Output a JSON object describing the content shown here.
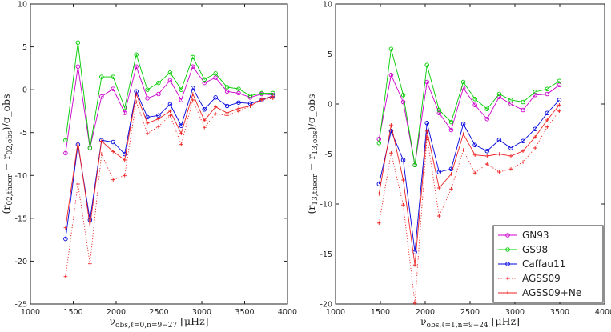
{
  "chart_data": [
    {
      "type": "line",
      "ylabel": "(r_{02,theor} − r_{02,obs})/σ_obs",
      "xlabel": "ν_{obs,ℓ=0,n=9−27} [μHz]",
      "xlim": [
        1000,
        4000
      ],
      "ylim": [
        -25,
        10
      ],
      "xticks": [
        1000,
        1500,
        2000,
        2500,
        3000,
        3500,
        4000
      ],
      "yticks": [
        -25,
        -20,
        -15,
        -10,
        -5,
        0,
        5,
        10
      ],
      "x": [
        1410,
        1555,
        1695,
        1830,
        1965,
        2100,
        2235,
        2365,
        2495,
        2630,
        2760,
        2895,
        3030,
        3160,
        3295,
        3430,
        3565,
        3700,
        3830
      ],
      "series": [
        {
          "name": "GN93",
          "color": "#cc00cc",
          "style": "solid",
          "marker": "circle",
          "values": [
            -7.4,
            2.7,
            -6.8,
            -0.8,
            0.1,
            -2.7,
            2.7,
            -1.0,
            -0.5,
            1.1,
            -1.2,
            2.7,
            0.8,
            1.4,
            -0.2,
            -0.4,
            -0.9,
            -0.5,
            -0.6
          ]
        },
        {
          "name": "GS98",
          "color": "#00cc00",
          "style": "solid",
          "marker": "circle",
          "values": [
            -5.9,
            5.5,
            -6.8,
            1.5,
            1.5,
            -2.1,
            4.1,
            0.0,
            0.8,
            2.0,
            0.0,
            3.8,
            1.2,
            1.9,
            0.3,
            0.1,
            -0.7,
            -0.4,
            -0.4
          ]
        },
        {
          "name": "Caffau11",
          "color": "#0000dd",
          "style": "solid",
          "marker": "circle",
          "values": [
            -17.4,
            -6.4,
            -15.2,
            -5.9,
            -6.1,
            -7.5,
            -0.2,
            -3.2,
            -3.0,
            -1.7,
            -4.2,
            0.2,
            -2.3,
            -0.9,
            -1.9,
            -1.5,
            -1.6,
            -1.2,
            -0.7
          ]
        },
        {
          "name": "AGSS09",
          "color": "#ee2222",
          "style": "dotted",
          "marker": "plus",
          "values": [
            -21.8,
            -11.0,
            -20.3,
            -7.5,
            -10.5,
            -10.0,
            -1.4,
            -5.1,
            -4.3,
            -3.0,
            -6.4,
            -1.2,
            -4.4,
            -2.8,
            -3.0,
            -2.5,
            -1.9,
            -1.2,
            -1.0
          ]
        },
        {
          "name": "AGSS09+Ne",
          "color": "#ee2222",
          "style": "solid",
          "marker": "plus",
          "values": [
            -16.1,
            -6.1,
            -15.9,
            -6.0,
            -7.2,
            -8.2,
            -0.5,
            -3.9,
            -3.4,
            -2.5,
            -5.1,
            -0.5,
            -3.6,
            -2.0,
            -2.7,
            -2.2,
            -1.9,
            -1.1,
            -0.8
          ]
        }
      ]
    },
    {
      "type": "line",
      "ylabel": "(r_{13,theor} − r_{13,obs})/σ_obs",
      "xlabel": "ν_{obs,ℓ=1,n=9−24} [μHz]",
      "xlim": [
        1000,
        4000
      ],
      "ylim": [
        -20,
        10
      ],
      "xticks": [
        1000,
        1500,
        2000,
        2500,
        3000,
        3500,
        4000
      ],
      "yticks": [
        -20,
        -15,
        -10,
        -5,
        0,
        5,
        10
      ],
      "x": [
        1485,
        1620,
        1755,
        1885,
        2020,
        2155,
        2290,
        2425,
        2555,
        2690,
        2825,
        2955,
        3090,
        3225,
        3360,
        3495
      ],
      "series": [
        {
          "name": "GN93",
          "color": "#cc00cc",
          "style": "solid",
          "marker": "circle",
          "values": [
            -3.5,
            2.9,
            0.2,
            -6.1,
            2.2,
            -0.9,
            -2.6,
            1.6,
            -0.1,
            -1.5,
            0.7,
            0.0,
            -0.6,
            0.9,
            1.0,
            1.9
          ]
        },
        {
          "name": "GS98",
          "color": "#00cc00",
          "style": "solid",
          "marker": "circle",
          "values": [
            -3.9,
            5.5,
            0.9,
            -6.1,
            3.9,
            -0.6,
            -1.8,
            2.2,
            0.5,
            -0.5,
            1.0,
            0.4,
            0.2,
            1.2,
            1.5,
            2.3
          ]
        },
        {
          "name": "Caffau11",
          "color": "#0000dd",
          "style": "solid",
          "marker": "circle",
          "values": [
            -8.0,
            -2.7,
            -5.6,
            -14.8,
            -1.9,
            -6.8,
            -6.5,
            -2.0,
            -4.1,
            -4.7,
            -3.6,
            -4.4,
            -3.7,
            -2.5,
            -0.9,
            0.4
          ]
        },
        {
          "name": "AGSS09",
          "color": "#ee2222",
          "style": "dotted",
          "marker": "plus",
          "values": [
            -11.9,
            -4.9,
            -10.1,
            -19.9,
            -3.3,
            -11.2,
            -8.5,
            -4.6,
            -6.9,
            -6.0,
            -6.8,
            -6.5,
            -5.8,
            -4.4,
            -2.3,
            -0.7
          ]
        },
        {
          "name": "AGSS09+Ne",
          "color": "#ee2222",
          "style": "solid",
          "marker": "plus",
          "values": [
            -9.0,
            -2.1,
            -7.6,
            -16.1,
            -2.7,
            -8.4,
            -7.0,
            -3.0,
            -5.1,
            -5.2,
            -5.0,
            -5.2,
            -4.7,
            -3.3,
            -1.6,
            -0.1
          ]
        }
      ],
      "legend": {
        "position": "bottom-right",
        "entries": [
          "GN93",
          "GS98",
          "Caffau11",
          "AGSS09",
          "AGSS09+Ne"
        ]
      }
    }
  ]
}
